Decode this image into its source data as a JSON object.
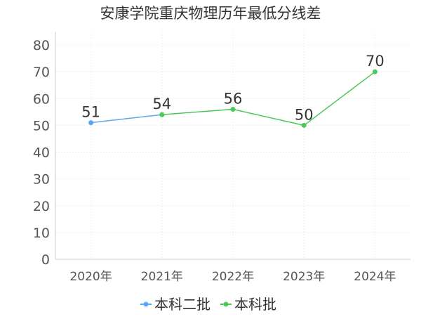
{
  "chart_data": {
    "type": "line",
    "title": "安康学院重庆物理历年最低分线差",
    "categories": [
      "2020年",
      "2021年",
      "2022年",
      "2023年",
      "2024年"
    ],
    "y_ticks": [
      "0",
      "10",
      "20",
      "30",
      "40",
      "50",
      "60",
      "70",
      "80"
    ],
    "ylim": [
      0,
      85
    ],
    "grid": true,
    "legend_placement": "bottom",
    "series": [
      {
        "name": "本科二批",
        "color": "#5ba7f0",
        "values": [
          51,
          54,
          null,
          null,
          null
        ],
        "labels": [
          "51",
          "54",
          "",
          "",
          ""
        ]
      },
      {
        "name": "本科批",
        "color": "#4cc75a",
        "values": [
          null,
          54,
          56,
          50,
          70
        ],
        "labels": [
          "",
          "",
          "56",
          "50",
          "70"
        ]
      }
    ]
  }
}
